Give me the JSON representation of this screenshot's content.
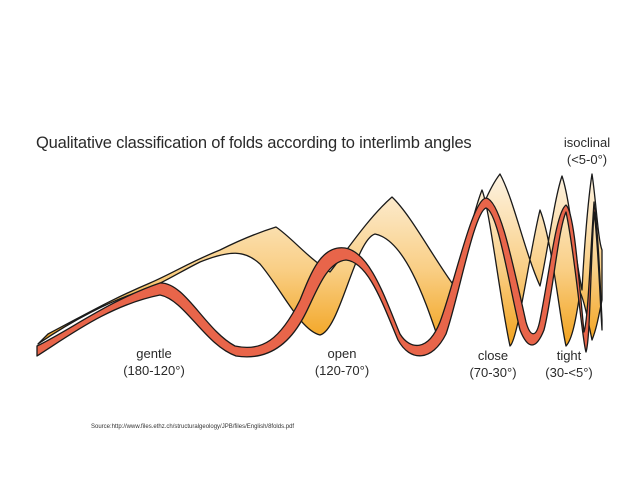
{
  "title": "Qualitative classification of folds according to interlimb angles",
  "categories": [
    {
      "name": "gentle",
      "range": "(180-120°)"
    },
    {
      "name": "open",
      "range": "(120-70°)"
    },
    {
      "name": "close",
      "range": "(70-30°)"
    },
    {
      "name": "tight",
      "range": "(30-<5°)"
    },
    {
      "name": "isoclinal",
      "range": "(<5-0°)"
    }
  ],
  "source": "Source:http://www.files.ethz.ch/structuralgeology/JPB/files/English/8folds.pdf",
  "colors": {
    "layer_front": "#e8654a",
    "layer_top_light": "#fdf1dc",
    "layer_top_dark": "#f4a92a",
    "outline": "#1a1a1a"
  }
}
